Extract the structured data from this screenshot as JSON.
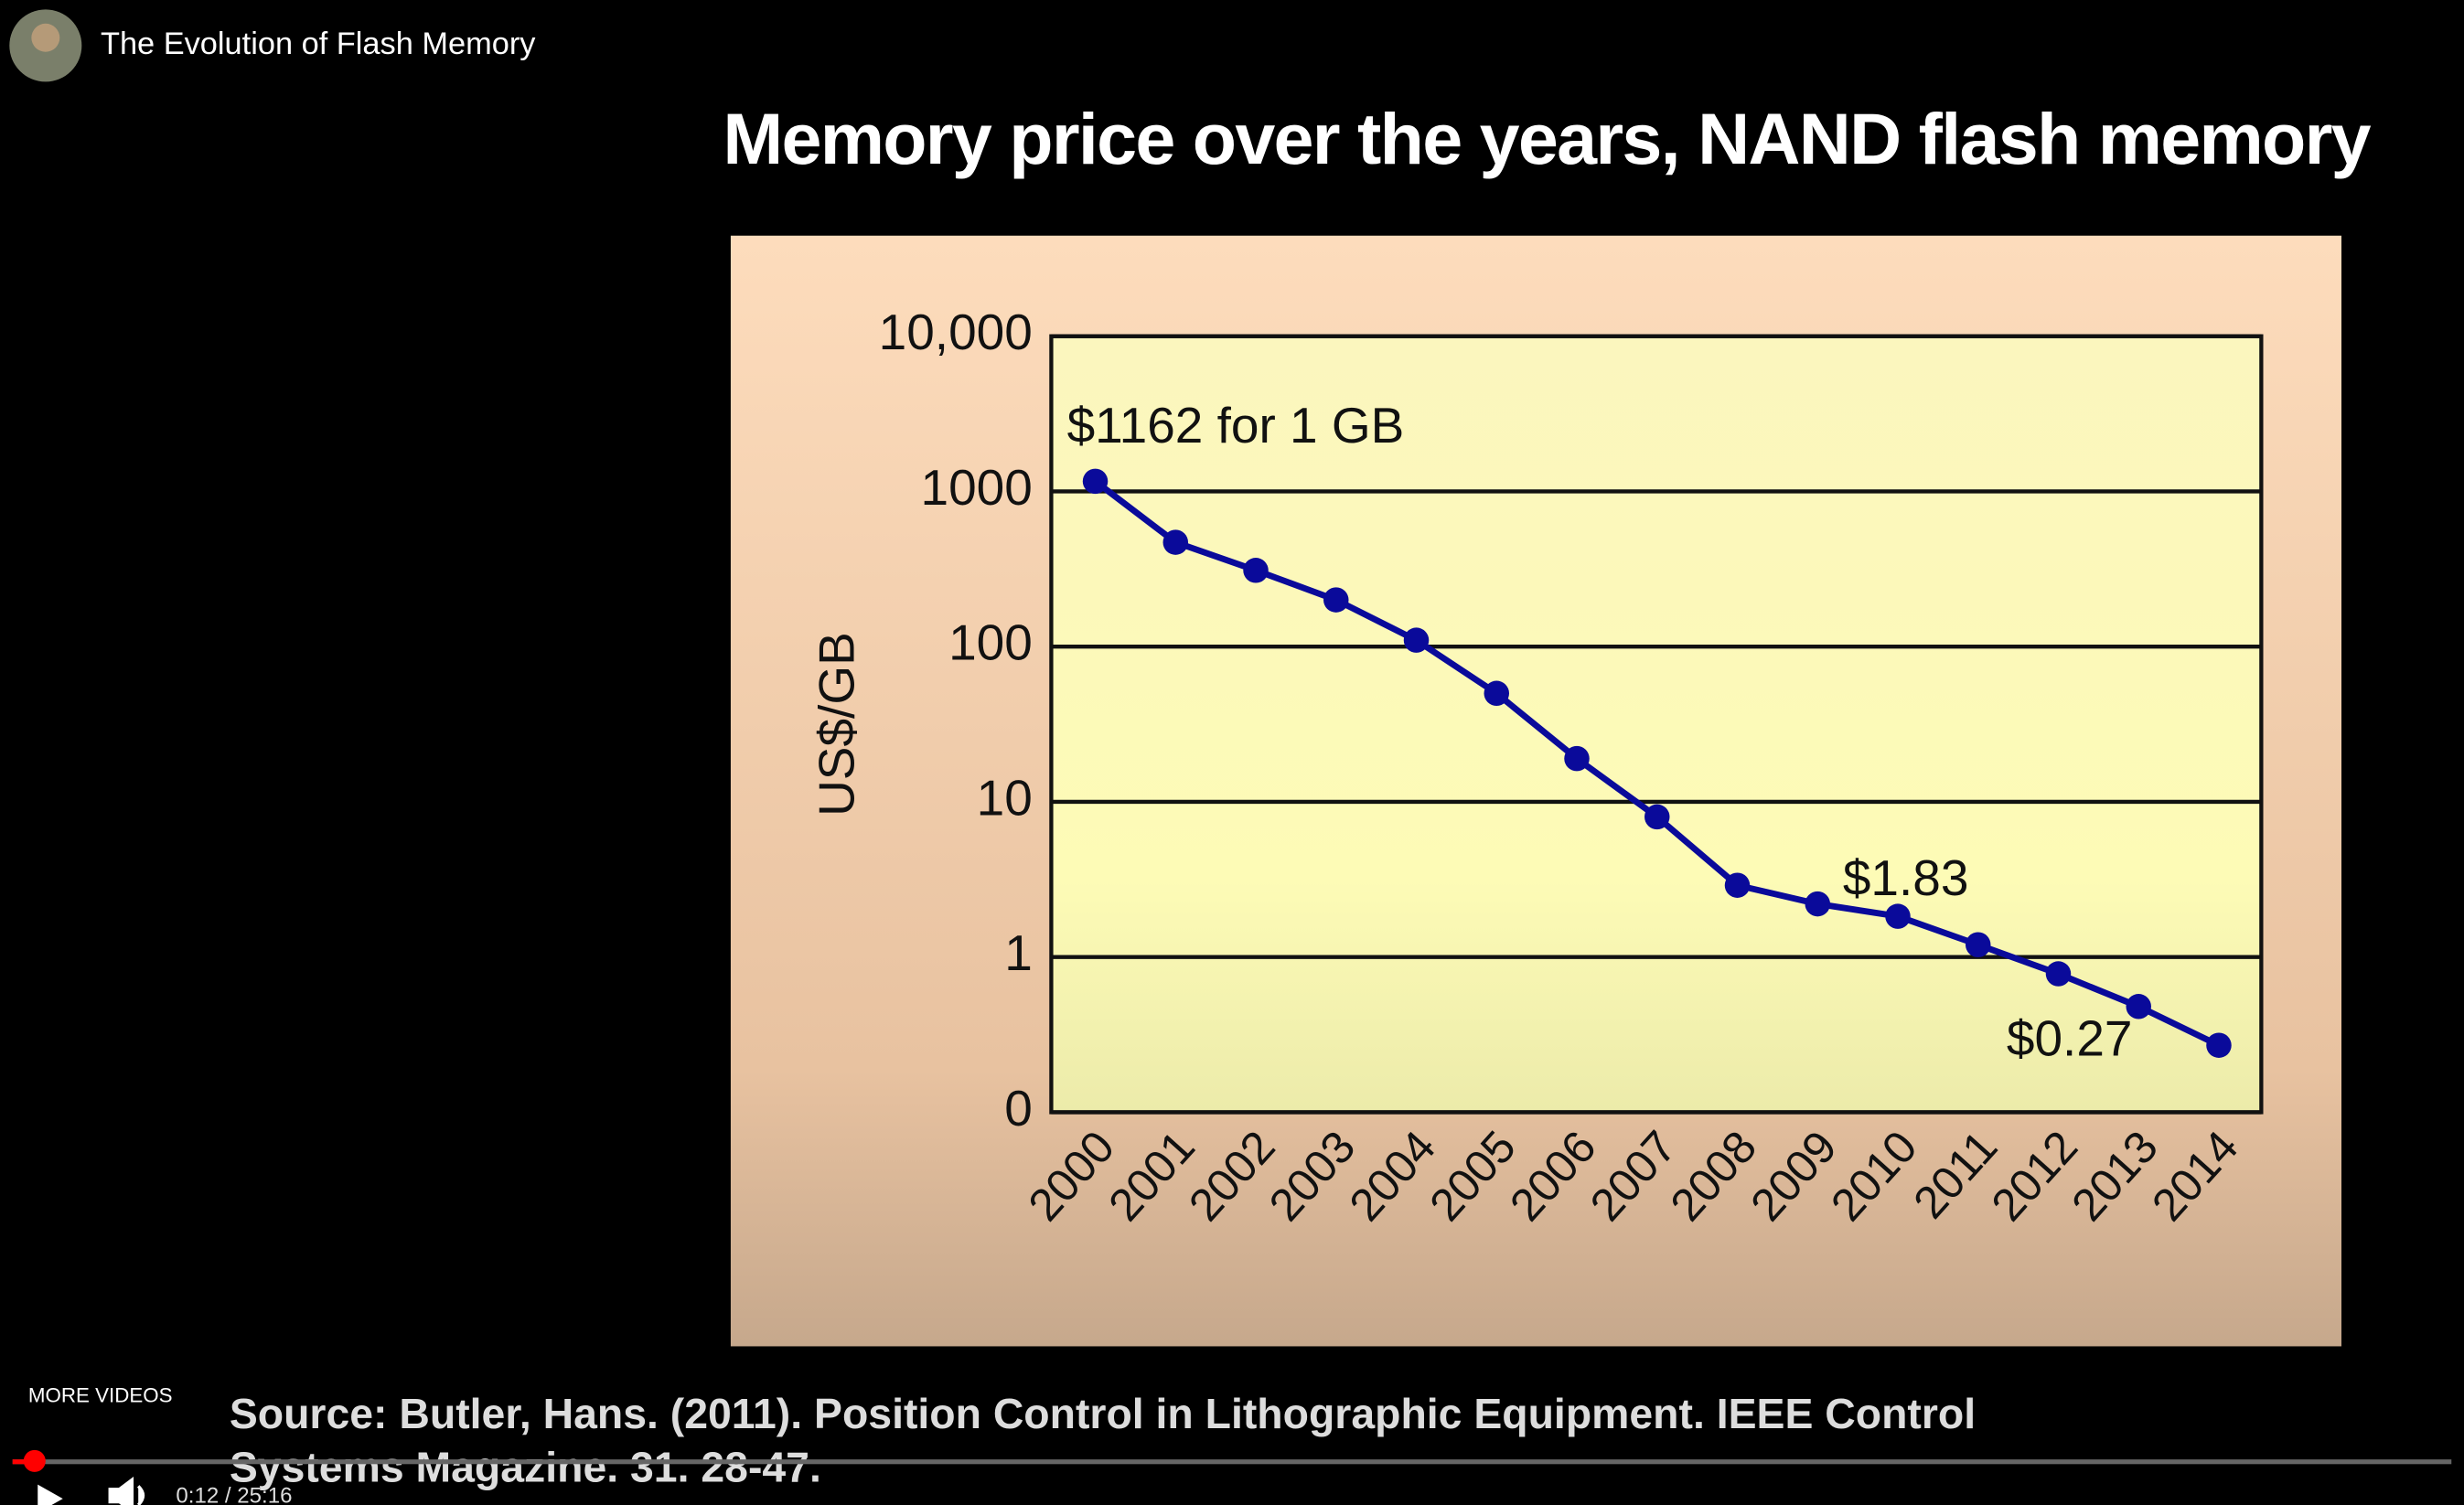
{
  "video_title": "The Evolution of Flash Memory",
  "more_videos": "MORE VIDEOS",
  "time": "0:12 / 25:16",
  "source": [
    "Source: Butler, Hans. (2011). Position Control in Lithographic Equipment. IEEE Control",
    "Systems Magazine. 31. 28-47."
  ],
  "chart_data": {
    "type": "line",
    "title": "Memory price over the years, NAND flash memory",
    "y_label": "US$/GB",
    "categories": [
      "2000",
      "2001",
      "2002",
      "2003",
      "2004",
      "2005",
      "2006",
      "2007",
      "2008",
      "2009",
      "2010",
      "2011",
      "2012",
      "2013",
      "2014"
    ],
    "series": [
      {
        "color": "#0a0a9a",
        "values": [
          1162,
          470,
          310,
          200,
          110,
          50,
          19,
          8,
          2.9,
          2.2,
          1.83,
          1.2,
          0.78,
          0.48,
          0.27
        ],
        "value_labels": [
          "$1162 for 1 GB",
          null,
          null,
          null,
          null,
          null,
          null,
          null,
          null,
          null,
          "$1.83",
          null,
          null,
          null,
          "$0.27"
        ]
      }
    ],
    "log_scale": true,
    "grid": true,
    "ylim": [
      0.1,
      10000
    ],
    "yticks": [
      {
        "value": 0.1,
        "label": "0"
      },
      1,
      10,
      100,
      {
        "value": 1000,
        "label": "1000"
      },
      {
        "value": 10000,
        "label": "10,000"
      }
    ]
  }
}
